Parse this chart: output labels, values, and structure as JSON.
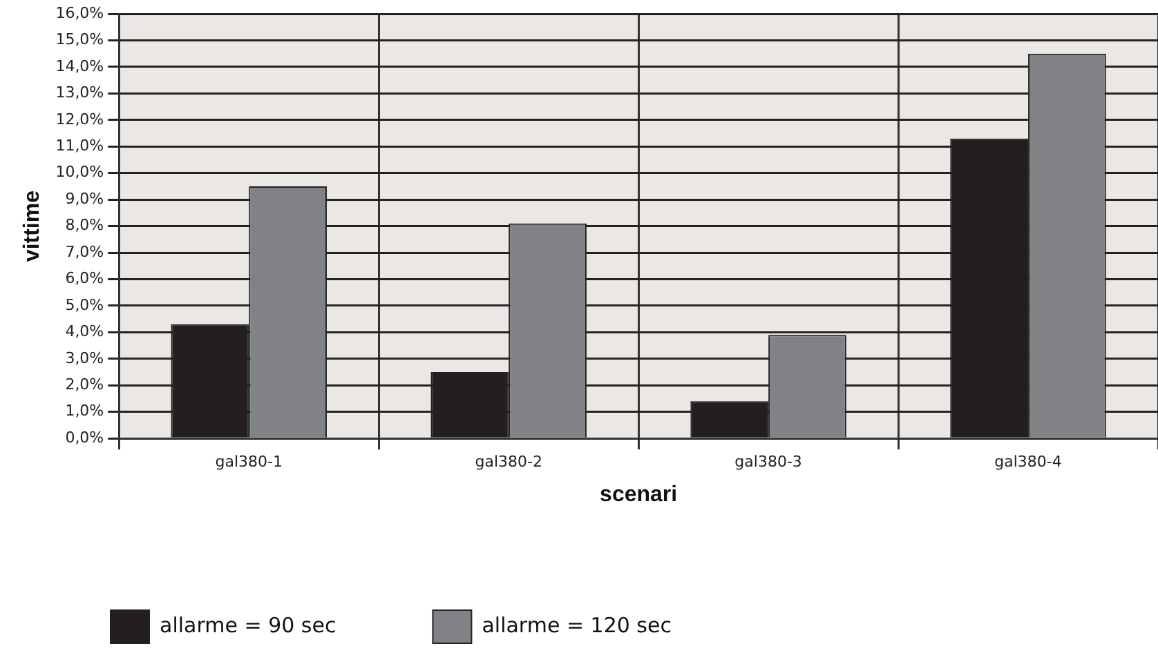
{
  "chart_data": {
    "type": "bar",
    "xlabel": "scenari",
    "ylabel": "vittime",
    "categories": [
      "gal380-1",
      "gal380-2",
      "gal380-3",
      "gal380-4"
    ],
    "series": [
      {
        "name": "allarme = 90 sec",
        "color": "#231f20",
        "values": [
          4.3,
          2.5,
          1.4,
          11.3
        ]
      },
      {
        "name": "allarme = 120 sec",
        "color": "#818285",
        "values": [
          9.5,
          8.1,
          3.9,
          14.5
        ]
      }
    ],
    "ylim": [
      0,
      16
    ],
    "yticks": [
      {
        "value": 0,
        "label": "0,0%"
      },
      {
        "value": 1,
        "label": "1,0%"
      },
      {
        "value": 2,
        "label": "2,0%"
      },
      {
        "value": 3,
        "label": "3,0%"
      },
      {
        "value": 4,
        "label": "4,0%"
      },
      {
        "value": 5,
        "label": "5,0%"
      },
      {
        "value": 6,
        "label": "6,0%"
      },
      {
        "value": 7,
        "label": "7,0%"
      },
      {
        "value": 8,
        "label": "8,0%"
      },
      {
        "value": 9,
        "label": "9,0%"
      },
      {
        "value": 10,
        "label": "10,0%"
      },
      {
        "value": 11,
        "label": "11,0%"
      },
      {
        "value": 12,
        "label": "12,0%"
      },
      {
        "value": 13,
        "label": "13,0%"
      },
      {
        "value": 14,
        "label": "14,0%"
      },
      {
        "value": 15,
        "label": "15,0%"
      },
      {
        "value": 16,
        "label": "16,0%"
      }
    ],
    "grid": true,
    "legend": "bottom left"
  }
}
